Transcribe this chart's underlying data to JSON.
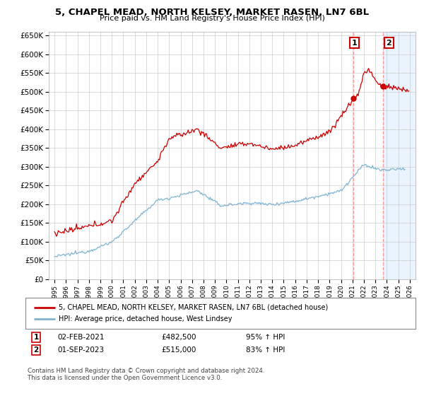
{
  "title": "5, CHAPEL MEAD, NORTH KELSEY, MARKET RASEN, LN7 6BL",
  "subtitle": "Price paid vs. HM Land Registry's House Price Index (HPI)",
  "legend_line1": "5, CHAPEL MEAD, NORTH KELSEY, MARKET RASEN, LN7 6BL (detached house)",
  "legend_line2": "HPI: Average price, detached house, West Lindsey",
  "annotation1_label": "1",
  "annotation1_date": "02-FEB-2021",
  "annotation1_price": "£482,500",
  "annotation1_hpi": "95% ↑ HPI",
  "annotation2_label": "2",
  "annotation2_date": "01-SEP-2023",
  "annotation2_price": "£515,000",
  "annotation2_hpi": "83% ↑ HPI",
  "sale1_x": 2021.08,
  "sale1_y": 482500,
  "sale2_x": 2023.67,
  "sale2_y": 515000,
  "footer": "Contains HM Land Registry data © Crown copyright and database right 2024.\nThis data is licensed under the Open Government Licence v3.0.",
  "ylim": [
    0,
    660000
  ],
  "xlim": [
    1994.5,
    2026.5
  ],
  "red_color": "#cc0000",
  "blue_color": "#7fb3d3",
  "bg_color": "#ffffff",
  "grid_color": "#cccccc",
  "shade_color": "#ddeeff"
}
